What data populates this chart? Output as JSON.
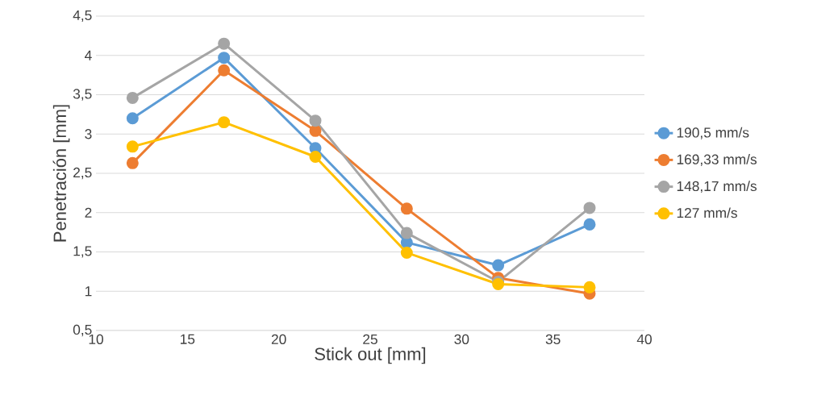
{
  "chart_data": {
    "type": "line",
    "xlabel": "Stick out [mm]",
    "ylabel": "Penetración [mm]",
    "x": [
      12,
      17,
      22,
      27,
      32,
      37
    ],
    "series": [
      {
        "name": "190,5 mm/s",
        "color": "#5b9bd5",
        "values": [
          3.2,
          3.97,
          2.82,
          1.62,
          1.33,
          1.85
        ]
      },
      {
        "name": "169,33 mm/s",
        "color": "#ed7d31",
        "values": [
          2.63,
          3.81,
          3.04,
          2.05,
          1.17,
          0.97
        ]
      },
      {
        "name": "148,17 mm/s",
        "color": "#a5a5a5",
        "values": [
          3.46,
          4.15,
          3.17,
          1.74,
          1.12,
          2.06
        ]
      },
      {
        "name": "127 mm/s",
        "color": "#ffc000",
        "values": [
          2.84,
          3.15,
          2.71,
          1.49,
          1.09,
          1.05
        ]
      }
    ],
    "xlim": [
      10,
      40
    ],
    "xticks": [
      10,
      15,
      20,
      25,
      30,
      35,
      40
    ],
    "ylim": [
      0.5,
      4.5
    ],
    "yticks": [
      {
        "value": 0.5,
        "label": "0,5"
      },
      1,
      {
        "value": 1.5,
        "label": "1,5"
      },
      2,
      {
        "value": 2.5,
        "label": "2,5"
      },
      3,
      {
        "value": 3.5,
        "label": "3,5"
      },
      4,
      {
        "value": 4.5,
        "label": "4,5"
      }
    ],
    "grid": "y",
    "legend": "right",
    "marker": "circle",
    "line_style": "solid"
  }
}
